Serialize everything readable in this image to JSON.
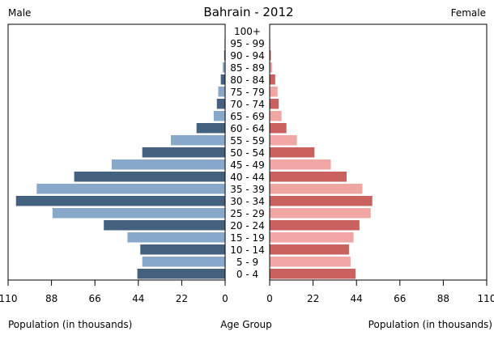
{
  "chart_data": {
    "type": "bar",
    "title": "Bahrain - 2012",
    "left_label": "Male",
    "right_label": "Female",
    "xlabel_left": "Population (in thousands)",
    "xlabel_center": "Age Group",
    "xlabel_right": "Population (in thousands)",
    "xlim": [
      0,
      110
    ],
    "ticks": [
      "110",
      "88",
      "66",
      "44",
      "22",
      "0"
    ],
    "ticks_right": [
      "0",
      "22",
      "44",
      "66",
      "88",
      "110"
    ],
    "tick_values": [
      0,
      22,
      44,
      66,
      88,
      110
    ],
    "categories": [
      "100+",
      "95 - 99",
      "90 - 94",
      "85 - 89",
      "80 - 84",
      "75 - 79",
      "70 - 74",
      "65 - 69",
      "60 - 64",
      "55 - 59",
      "50 - 54",
      "45 - 49",
      "40 - 44",
      "35 - 39",
      "30 - 34",
      "25 - 29",
      "20 - 24",
      "15 - 19",
      "10 - 14",
      "5 - 9",
      "0 - 4"
    ],
    "series": [
      {
        "name": "Male",
        "values": [
          0.2,
          0.3,
          0.5,
          1.2,
          2.2,
          3.5,
          4.2,
          5.8,
          14.5,
          27.5,
          42.0,
          57.5,
          76.5,
          95.5,
          106.0,
          87.5,
          61.5,
          49.5,
          43.0,
          42.0,
          44.5
        ]
      },
      {
        "name": "Female",
        "values": [
          0.2,
          0.3,
          0.6,
          1.3,
          2.8,
          4.0,
          4.6,
          6.0,
          8.5,
          13.8,
          22.7,
          31.0,
          39.0,
          47.0,
          52.0,
          51.2,
          45.5,
          42.5,
          40.2,
          41.0,
          43.5
        ]
      }
    ],
    "colors": {
      "male_dark": "#44627f",
      "male_light": "#87a8c9",
      "female_dark": "#c9625e",
      "female_light": "#f0a6a3"
    },
    "grid": false
  }
}
